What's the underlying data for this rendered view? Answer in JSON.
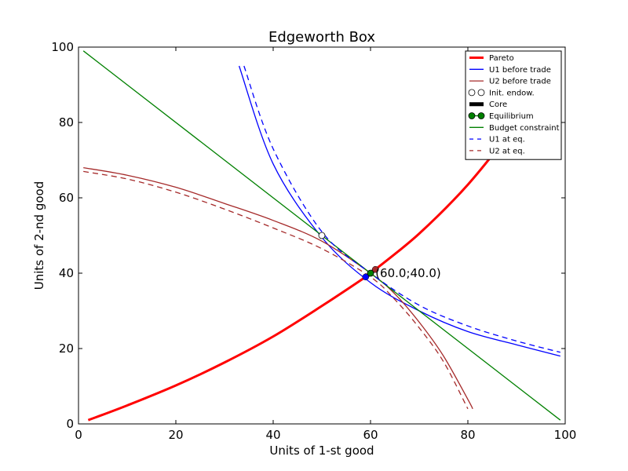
{
  "chart_data": {
    "type": "line",
    "title": "Edgeworth Box",
    "xlabel": "Units of 1-st good",
    "ylabel": "Units of 2-nd good",
    "xlim": [
      0,
      100
    ],
    "ylim": [
      0,
      100
    ],
    "xticks": [
      0,
      20,
      40,
      60,
      80,
      100
    ],
    "yticks": [
      0,
      20,
      40,
      60,
      80,
      100
    ],
    "grid": false,
    "legend_position": "top-right",
    "colors": {
      "blue": "#0000ff",
      "brown": "#a52a2a",
      "green": "#008000",
      "red": "#ff0000",
      "black": "#000000"
    },
    "series": [
      {
        "name": "Pareto",
        "kind": "line",
        "color": "#ff0000",
        "width": 3,
        "dash": "solid",
        "x": [
          2,
          10,
          20,
          30,
          40,
          50,
          59,
          61,
          70,
          80,
          90,
          93
        ],
        "y": [
          1,
          4.9,
          10.2,
          16.3,
          23.2,
          31.3,
          39,
          41,
          50.5,
          63.5,
          79.5,
          85
        ]
      },
      {
        "name": "U1 before trade",
        "kind": "line",
        "color": "#0000ff",
        "width": 1.3,
        "dash": "solid",
        "x": [
          33,
          40,
          50,
          60,
          70,
          80,
          90,
          99
        ],
        "y": [
          95,
          69,
          49.5,
          37.5,
          30,
          24.5,
          21,
          18
        ]
      },
      {
        "name": "U2 before trade",
        "kind": "line",
        "color": "#a52a2a",
        "width": 1.3,
        "dash": "solid",
        "x": [
          1,
          10,
          20,
          30,
          40,
          50,
          60,
          65,
          70,
          75,
          80,
          81
        ],
        "y": [
          68,
          66,
          62.8,
          58.5,
          54,
          48.5,
          40,
          34.5,
          27,
          18,
          6.5,
          4
        ]
      },
      {
        "name": "Init. endow.",
        "kind": "marker",
        "color": "#ffffff",
        "edge": "#000000",
        "x": [
          50
        ],
        "y": [
          50
        ]
      },
      {
        "name": "Core",
        "kind": "line",
        "color": "#000000",
        "width": 5,
        "dash": "solid",
        "x": [
          59,
          61
        ],
        "y": [
          39,
          41
        ]
      },
      {
        "name": "Equilibrium",
        "kind": "marker",
        "color": "#008000",
        "edge": "#000000",
        "x": [
          60
        ],
        "y": [
          40
        ]
      },
      {
        "name": "Budget constraint",
        "kind": "line",
        "color": "#008000",
        "width": 1.3,
        "dash": "solid",
        "x": [
          1,
          99
        ],
        "y": [
          99,
          1
        ]
      },
      {
        "name": "U1 at eq.",
        "kind": "line",
        "color": "#0000ff",
        "width": 1.3,
        "dash": "dashed",
        "x": [
          34,
          40,
          50,
          60,
          70,
          80,
          90,
          99
        ],
        "y": [
          95,
          73,
          51,
          40,
          31.5,
          26,
          22,
          19
        ]
      },
      {
        "name": "U2 at eq.",
        "kind": "line",
        "color": "#a52a2a",
        "width": 1.3,
        "dash": "dashed",
        "x": [
          1,
          10,
          20,
          30,
          40,
          50,
          60,
          65,
          70,
          75,
          80
        ],
        "y": [
          67,
          65,
          61.5,
          57,
          52,
          46.5,
          39,
          33,
          25.5,
          16.5,
          4
        ]
      }
    ],
    "extra_points": [
      {
        "x": 59,
        "y": 39,
        "color": "#0000ff"
      },
      {
        "x": 61,
        "y": 41,
        "color": "#a52a2a"
      }
    ],
    "annotation": {
      "text": "(60.0;40.0)",
      "x": 61,
      "y": 40
    }
  }
}
